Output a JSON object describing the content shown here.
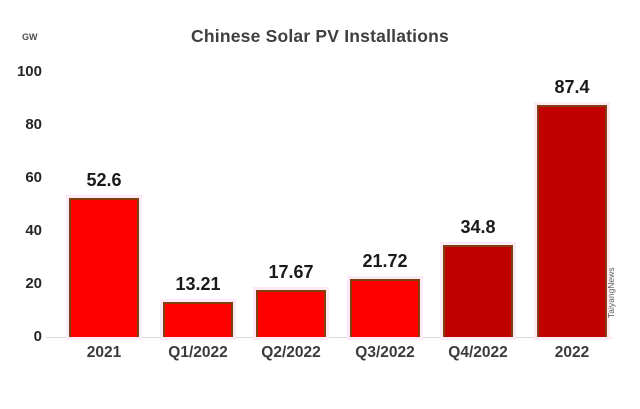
{
  "title": "Chinese Solar PV Installations",
  "unit_label": "GW",
  "watermark": "TaiyangNews",
  "colors": {
    "bright_red": "#fe0000",
    "dark_red": "#c00000",
    "bar_outline": "#83400f",
    "bar_glow": "#fdeaf6",
    "axis_line": "#d9d9d9",
    "title_text": "#3f3f3f",
    "label_text": "#1a1a1a"
  },
  "chart_data": {
    "type": "bar",
    "title": "Chinese Solar PV Installations",
    "ylabel": "GW",
    "categories": [
      "2021",
      "Q1/2022",
      "Q2/2022",
      "Q3/2022",
      "Q4/2022",
      "2022"
    ],
    "values": [
      52.6,
      13.21,
      17.67,
      21.72,
      34.8,
      87.4
    ],
    "data_labels": [
      "52.6",
      "13.21",
      "17.67",
      "21.72",
      "34.8",
      "87.4"
    ],
    "bar_colors": [
      "#fe0000",
      "#fe0000",
      "#fe0000",
      "#fe0000",
      "#c00000",
      "#c00000"
    ],
    "ylim": [
      0,
      100
    ],
    "yticks": [
      0,
      20,
      40,
      60,
      80,
      100
    ],
    "grid": false,
    "legend": false,
    "data_label_position": "above-bar"
  }
}
